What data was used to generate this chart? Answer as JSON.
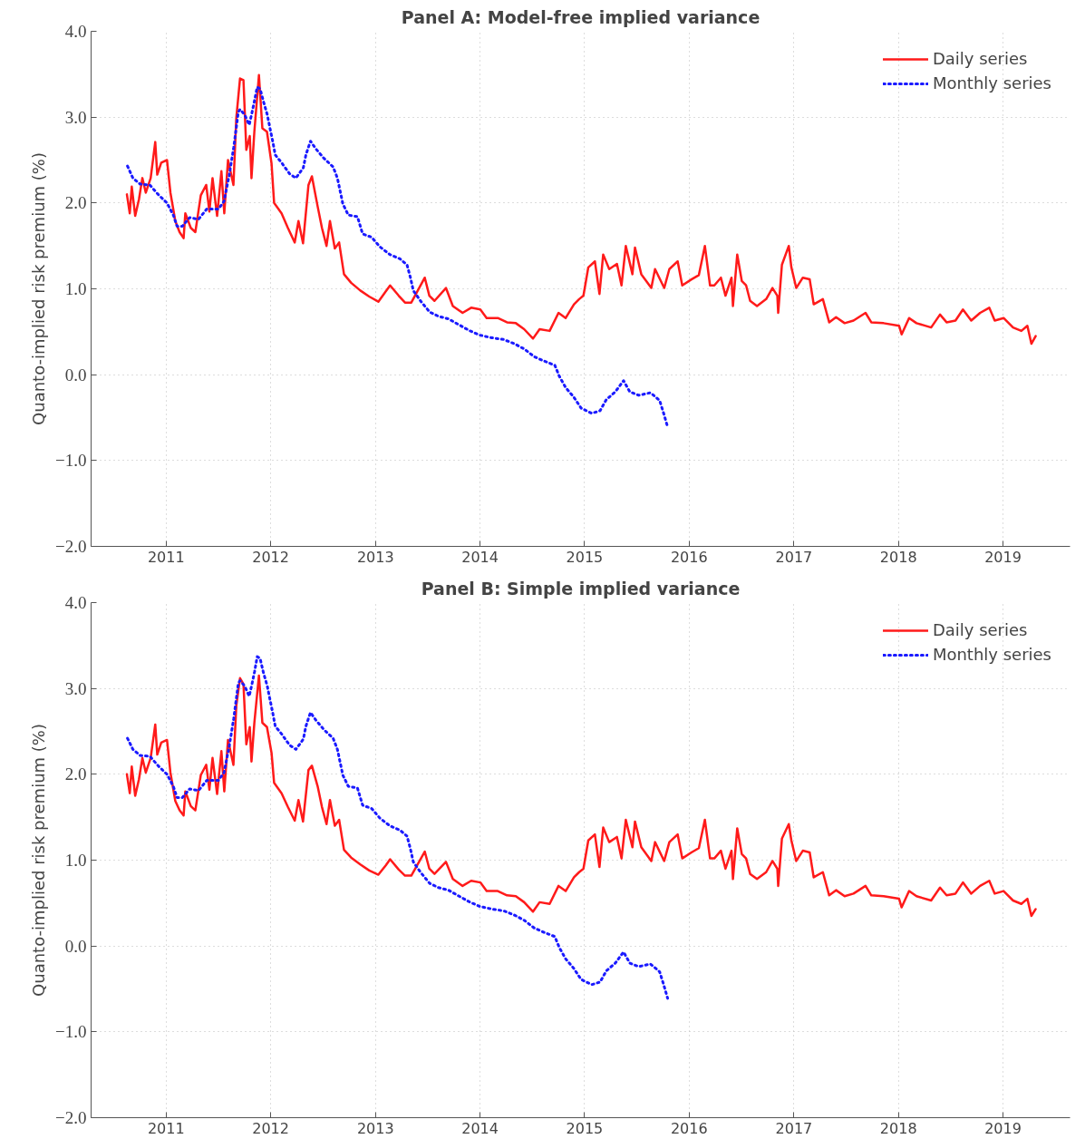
{
  "chart_data": [
    {
      "type": "line",
      "title": "Panel A: Model-free implied variance",
      "ylabel": "Quanto-implied risk premium (%)",
      "xlim": [
        "2010-04-14",
        "2019-08-23"
      ],
      "ylim": [
        -2.0,
        4.0
      ],
      "xticks": [
        {
          "value": "2011-01-01",
          "label": "2011"
        },
        {
          "value": "2012-01-01",
          "label": "2012"
        },
        {
          "value": "2013-01-01",
          "label": "2013"
        },
        {
          "value": "2014-01-01",
          "label": "2014"
        },
        {
          "value": "2015-01-01",
          "label": "2015"
        },
        {
          "value": "2016-01-01",
          "label": "2016"
        },
        {
          "value": "2017-01-01",
          "label": "2017"
        },
        {
          "value": "2018-01-01",
          "label": "2018"
        },
        {
          "value": "2019-01-01",
          "label": "2019"
        }
      ],
      "yticks": [
        {
          "value": -2.0,
          "label": "−2.0"
        },
        {
          "value": -1.0,
          "label": "−1.0"
        },
        {
          "value": 0.0,
          "label": "0.0"
        },
        {
          "value": 1.0,
          "label": "1.0"
        },
        {
          "value": 2.0,
          "label": "2.0"
        },
        {
          "value": 3.0,
          "label": "3.0"
        },
        {
          "value": 4.0,
          "label": "4.0"
        }
      ],
      "grid": true,
      "legend": "top right",
      "marker": "none",
      "series": [
        {
          "name": "Daily series",
          "color": "#ff1a1a",
          "line_style": "solid",
          "x": [
            "2010-08-17",
            "2010-08-27",
            "2010-09-03",
            "2010-09-15",
            "2010-09-28",
            "2010-10-10",
            "2010-10-22",
            "2010-11-08",
            "2010-11-24",
            "2010-12-01",
            "2010-12-15",
            "2011-01-04",
            "2011-01-16",
            "2011-02-02",
            "2011-02-17",
            "2011-03-03",
            "2011-03-09",
            "2011-03-28",
            "2011-04-13",
            "2011-05-02",
            "2011-05-21",
            "2011-06-01",
            "2011-06-12",
            "2011-06-28",
            "2011-07-13",
            "2011-07-23",
            "2011-08-05",
            "2011-08-24",
            "2011-09-03",
            "2011-09-16",
            "2011-09-28",
            "2011-10-08",
            "2011-10-20",
            "2011-10-26",
            "2011-11-05",
            "2011-11-21",
            "2011-12-03",
            "2011-12-19",
            "2012-01-04",
            "2012-01-13",
            "2012-02-08",
            "2012-03-01",
            "2012-03-25",
            "2012-04-07",
            "2012-04-23",
            "2012-05-12",
            "2012-05-24",
            "2012-06-13",
            "2012-06-28",
            "2012-07-14",
            "2012-07-26",
            "2012-08-12",
            "2012-08-27",
            "2012-09-13",
            "2012-10-08",
            "2012-11-09",
            "2012-12-10",
            "2013-01-11",
            "2013-02-06",
            "2013-02-21",
            "2013-03-23",
            "2013-04-14",
            "2013-05-06",
            "2013-06-22",
            "2013-07-08",
            "2013-07-26",
            "2013-09-04",
            "2013-09-28",
            "2013-11-01",
            "2013-12-01",
            "2014-01-02",
            "2014-01-24",
            "2014-03-04",
            "2014-04-05",
            "2014-05-06",
            "2014-06-04",
            "2014-07-05",
            "2014-07-28",
            "2014-09-01",
            "2014-10-02",
            "2014-10-27",
            "2014-11-25",
            "2014-12-13",
            "2014-12-28",
            "2015-01-14",
            "2015-02-06",
            "2015-02-22",
            "2015-03-07",
            "2015-03-28",
            "2015-04-24",
            "2015-05-10",
            "2015-05-25",
            "2015-06-17",
            "2015-06-26",
            "2015-07-18",
            "2015-08-22",
            "2015-09-04",
            "2015-10-06",
            "2015-10-24",
            "2015-11-22",
            "2015-12-08",
            "2016-01-09",
            "2016-02-04",
            "2016-02-25",
            "2016-03-14",
            "2016-03-29",
            "2016-04-21",
            "2016-05-07",
            "2016-05-28",
            "2016-06-02",
            "2016-06-17",
            "2016-07-03",
            "2016-07-18",
            "2016-08-01",
            "2016-08-25",
            "2016-09-26",
            "2016-10-18",
            "2016-11-04",
            "2016-11-07",
            "2016-11-20",
            "2016-12-14",
            "2016-12-23",
            "2017-01-09",
            "2017-02-01",
            "2017-02-25",
            "2017-03-11",
            "2017-04-12",
            "2017-05-04",
            "2017-05-28",
            "2017-06-27",
            "2017-07-28",
            "2017-09-08",
            "2017-09-28",
            "2017-11-10",
            "2018-01-03",
            "2018-01-12",
            "2018-02-07",
            "2018-03-05",
            "2018-04-25",
            "2018-05-26",
            "2018-06-18",
            "2018-07-19",
            "2018-08-14",
            "2018-09-12",
            "2018-10-13",
            "2018-11-14",
            "2018-12-03",
            "2019-01-03",
            "2019-02-05",
            "2019-03-06",
            "2019-03-27",
            "2019-04-10",
            "2019-04-25"
          ],
          "values": [
            2.1,
            1.88,
            2.19,
            1.85,
            2.04,
            2.29,
            2.12,
            2.29,
            2.71,
            2.33,
            2.47,
            2.5,
            2.12,
            1.79,
            1.66,
            1.59,
            1.88,
            1.71,
            1.66,
            2.09,
            2.21,
            1.9,
            2.29,
            1.85,
            2.37,
            1.88,
            2.5,
            2.21,
            2.99,
            3.45,
            3.43,
            2.62,
            2.78,
            2.29,
            2.83,
            3.49,
            2.87,
            2.83,
            2.46,
            2.0,
            1.88,
            1.71,
            1.54,
            1.79,
            1.53,
            2.21,
            2.31,
            1.96,
            1.71,
            1.5,
            1.79,
            1.47,
            1.54,
            1.17,
            1.07,
            0.98,
            0.91,
            0.85,
            0.97,
            1.04,
            0.92,
            0.84,
            0.84,
            1.13,
            0.92,
            0.86,
            1.01,
            0.8,
            0.72,
            0.78,
            0.76,
            0.66,
            0.66,
            0.61,
            0.6,
            0.53,
            0.42,
            0.53,
            0.51,
            0.72,
            0.66,
            0.82,
            0.88,
            0.92,
            1.25,
            1.32,
            0.94,
            1.4,
            1.23,
            1.29,
            1.04,
            1.5,
            1.17,
            1.48,
            1.17,
            1.01,
            1.23,
            1.01,
            1.23,
            1.32,
            1.04,
            1.11,
            1.16,
            1.5,
            1.04,
            1.04,
            1.13,
            0.92,
            1.13,
            0.8,
            1.4,
            1.09,
            1.04,
            0.86,
            0.8,
            0.88,
            1.01,
            0.92,
            0.72,
            1.28,
            1.5,
            1.25,
            1.01,
            1.13,
            1.11,
            0.82,
            0.88,
            0.61,
            0.67,
            0.6,
            0.63,
            0.72,
            0.61,
            0.6,
            0.57,
            0.47,
            0.66,
            0.6,
            0.55,
            0.7,
            0.61,
            0.63,
            0.76,
            0.63,
            0.72,
            0.78,
            0.63,
            0.66,
            0.55,
            0.51,
            0.57,
            0.36,
            0.45
          ]
        },
        {
          "name": "Monthly series",
          "color": "#1a1aff",
          "line_style": "dotted",
          "x": [
            "2010-08-19",
            "2010-09-07",
            "2010-10-02",
            "2010-11-05",
            "2010-12-04",
            "2011-01-04",
            "2011-01-26",
            "2011-02-08",
            "2011-02-27",
            "2011-03-24",
            "2011-04-24",
            "2011-05-23",
            "2011-07-03",
            "2011-07-22",
            "2011-08-09",
            "2011-08-25",
            "2011-09-10",
            "2011-09-16",
            "2011-10-02",
            "2011-10-18",
            "2011-10-27",
            "2011-11-06",
            "2011-11-15",
            "2011-11-25",
            "2011-12-07",
            "2011-12-20",
            "2011-12-29",
            "2012-01-08",
            "2012-01-17",
            "2012-02-08",
            "2012-03-07",
            "2012-03-29",
            "2012-04-24",
            "2012-05-03",
            "2012-05-19",
            "2012-06-07",
            "2012-07-05",
            "2012-08-06",
            "2012-08-21",
            "2012-09-09",
            "2012-09-28",
            "2012-10-30",
            "2012-11-17",
            "2012-12-19",
            "2013-01-16",
            "2013-02-20",
            "2013-03-27",
            "2013-04-21",
            "2013-05-03",
            "2013-05-13",
            "2013-06-07",
            "2013-07-09",
            "2013-08-09",
            "2013-09-13",
            "2013-10-20",
            "2013-11-27",
            "2014-01-01",
            "2014-02-11",
            "2014-03-24",
            "2014-05-01",
            "2014-06-04",
            "2014-07-09",
            "2014-08-12",
            "2014-09-19",
            "2014-10-05",
            "2014-10-27",
            "2014-11-24",
            "2014-12-20",
            "2015-01-26",
            "2015-02-24",
            "2015-03-18",
            "2015-04-18",
            "2015-05-17",
            "2015-06-08",
            "2015-07-09",
            "2015-08-19",
            "2015-09-20",
            "2015-10-05",
            "2015-10-18"
          ],
          "values": [
            2.43,
            2.29,
            2.22,
            2.21,
            2.1,
            2.0,
            1.86,
            1.73,
            1.73,
            1.83,
            1.81,
            1.93,
            1.93,
            2.02,
            2.32,
            2.65,
            3.06,
            3.09,
            3.03,
            2.91,
            3.04,
            3.2,
            3.35,
            3.33,
            3.18,
            3.03,
            2.88,
            2.72,
            2.56,
            2.47,
            2.34,
            2.29,
            2.41,
            2.56,
            2.72,
            2.63,
            2.52,
            2.42,
            2.29,
            1.99,
            1.86,
            1.84,
            1.64,
            1.6,
            1.49,
            1.4,
            1.35,
            1.28,
            1.13,
            0.98,
            0.86,
            0.73,
            0.68,
            0.65,
            0.58,
            0.51,
            0.46,
            0.43,
            0.41,
            0.36,
            0.3,
            0.21,
            0.16,
            0.11,
            -0.02,
            -0.15,
            -0.26,
            -0.39,
            -0.45,
            -0.42,
            -0.29,
            -0.2,
            -0.07,
            -0.2,
            -0.24,
            -0.21,
            -0.3,
            -0.46,
            -0.61
          ]
        }
      ]
    },
    {
      "type": "line",
      "title": "Panel B: Simple implied variance",
      "ylabel": "Quanto-implied risk premium (%)",
      "xlim": [
        "2010-04-14",
        "2019-08-23"
      ],
      "ylim": [
        -2.0,
        4.0
      ],
      "xticks": [
        {
          "value": "2011-01-01",
          "label": "2011"
        },
        {
          "value": "2012-01-01",
          "label": "2012"
        },
        {
          "value": "2013-01-01",
          "label": "2013"
        },
        {
          "value": "2014-01-01",
          "label": "2014"
        },
        {
          "value": "2015-01-01",
          "label": "2015"
        },
        {
          "value": "2016-01-01",
          "label": "2016"
        },
        {
          "value": "2017-01-01",
          "label": "2017"
        },
        {
          "value": "2018-01-01",
          "label": "2018"
        },
        {
          "value": "2019-01-01",
          "label": "2019"
        }
      ],
      "yticks": [
        {
          "value": -2.0,
          "label": "−2.0"
        },
        {
          "value": -1.0,
          "label": "−1.0"
        },
        {
          "value": 0.0,
          "label": "0.0"
        },
        {
          "value": 1.0,
          "label": "1.0"
        },
        {
          "value": 2.0,
          "label": "2.0"
        },
        {
          "value": 3.0,
          "label": "3.0"
        },
        {
          "value": 4.0,
          "label": "4.0"
        }
      ],
      "grid": true,
      "legend": "top right",
      "marker": "none",
      "series": [
        {
          "name": "Daily series",
          "color": "#ff1a1a",
          "line_style": "solid",
          "x": [
            "2010-08-17",
            "2010-08-27",
            "2010-09-03",
            "2010-09-15",
            "2010-09-28",
            "2010-10-10",
            "2010-10-22",
            "2010-11-08",
            "2010-11-24",
            "2010-12-01",
            "2010-12-15",
            "2011-01-04",
            "2011-01-16",
            "2011-02-02",
            "2011-02-17",
            "2011-03-03",
            "2011-03-09",
            "2011-03-28",
            "2011-04-13",
            "2011-05-02",
            "2011-05-21",
            "2011-06-01",
            "2011-06-12",
            "2011-06-28",
            "2011-07-13",
            "2011-07-23",
            "2011-08-05",
            "2011-08-24",
            "2011-09-03",
            "2011-09-16",
            "2011-09-28",
            "2011-10-08",
            "2011-10-20",
            "2011-10-26",
            "2011-11-05",
            "2011-11-21",
            "2011-12-03",
            "2011-12-19",
            "2012-01-04",
            "2012-01-13",
            "2012-02-08",
            "2012-03-01",
            "2012-03-25",
            "2012-04-07",
            "2012-04-23",
            "2012-05-12",
            "2012-05-24",
            "2012-06-13",
            "2012-06-28",
            "2012-07-14",
            "2012-07-26",
            "2012-08-12",
            "2012-08-27",
            "2012-09-13",
            "2012-10-08",
            "2012-11-09",
            "2012-12-10",
            "2013-01-11",
            "2013-02-06",
            "2013-02-21",
            "2013-03-23",
            "2013-04-14",
            "2013-05-06",
            "2013-06-22",
            "2013-07-08",
            "2013-07-26",
            "2013-09-04",
            "2013-09-28",
            "2013-11-01",
            "2013-12-01",
            "2014-01-02",
            "2014-01-24",
            "2014-03-04",
            "2014-04-05",
            "2014-05-06",
            "2014-06-04",
            "2014-07-05",
            "2014-07-28",
            "2014-09-01",
            "2014-10-02",
            "2014-10-27",
            "2014-11-25",
            "2014-12-13",
            "2014-12-28",
            "2015-01-14",
            "2015-02-06",
            "2015-02-22",
            "2015-03-07",
            "2015-03-28",
            "2015-04-24",
            "2015-05-10",
            "2015-05-25",
            "2015-06-17",
            "2015-06-26",
            "2015-07-18",
            "2015-08-22",
            "2015-09-04",
            "2015-10-06",
            "2015-10-24",
            "2015-11-22",
            "2015-12-08",
            "2016-01-09",
            "2016-02-04",
            "2016-02-25",
            "2016-03-14",
            "2016-03-29",
            "2016-04-21",
            "2016-05-07",
            "2016-05-28",
            "2016-06-02",
            "2016-06-17",
            "2016-07-03",
            "2016-07-18",
            "2016-08-01",
            "2016-08-25",
            "2016-09-26",
            "2016-10-18",
            "2016-11-04",
            "2016-11-07",
            "2016-11-20",
            "2016-12-14",
            "2016-12-23",
            "2017-01-09",
            "2017-02-01",
            "2017-02-25",
            "2017-03-11",
            "2017-04-12",
            "2017-05-04",
            "2017-05-28",
            "2017-06-27",
            "2017-07-28",
            "2017-09-08",
            "2017-09-28",
            "2017-11-10",
            "2018-01-03",
            "2018-01-12",
            "2018-02-07",
            "2018-03-05",
            "2018-04-25",
            "2018-05-26",
            "2018-06-18",
            "2018-07-19",
            "2018-08-14",
            "2018-09-12",
            "2018-10-13",
            "2018-11-14",
            "2018-12-03",
            "2019-01-03",
            "2019-02-05",
            "2019-03-06",
            "2019-03-27",
            "2019-04-10",
            "2019-04-25"
          ],
          "values": [
            2.0,
            1.78,
            2.09,
            1.75,
            1.94,
            2.19,
            2.02,
            2.19,
            2.58,
            2.23,
            2.37,
            2.4,
            2.02,
            1.69,
            1.58,
            1.52,
            1.8,
            1.63,
            1.58,
            1.99,
            2.11,
            1.82,
            2.19,
            1.77,
            2.27,
            1.8,
            2.4,
            2.11,
            2.8,
            3.12,
            3.05,
            2.35,
            2.55,
            2.15,
            2.6,
            3.15,
            2.6,
            2.55,
            2.25,
            1.9,
            1.78,
            1.62,
            1.46,
            1.7,
            1.45,
            2.05,
            2.1,
            1.86,
            1.62,
            1.42,
            1.7,
            1.4,
            1.47,
            1.12,
            1.03,
            0.95,
            0.88,
            0.83,
            0.94,
            1.01,
            0.89,
            0.82,
            0.82,
            1.1,
            0.9,
            0.84,
            0.98,
            0.78,
            0.7,
            0.76,
            0.74,
            0.64,
            0.64,
            0.59,
            0.58,
            0.51,
            0.4,
            0.51,
            0.49,
            0.7,
            0.64,
            0.8,
            0.86,
            0.9,
            1.23,
            1.3,
            0.92,
            1.38,
            1.21,
            1.27,
            1.02,
            1.47,
            1.15,
            1.45,
            1.15,
            0.99,
            1.21,
            0.99,
            1.21,
            1.3,
            1.02,
            1.09,
            1.14,
            1.47,
            1.02,
            1.02,
            1.11,
            0.9,
            1.11,
            0.78,
            1.37,
            1.07,
            1.02,
            0.84,
            0.78,
            0.86,
            0.99,
            0.9,
            0.7,
            1.25,
            1.42,
            1.23,
            0.99,
            1.11,
            1.09,
            0.8,
            0.86,
            0.59,
            0.65,
            0.58,
            0.61,
            0.7,
            0.59,
            0.58,
            0.55,
            0.45,
            0.64,
            0.58,
            0.53,
            0.68,
            0.59,
            0.61,
            0.74,
            0.61,
            0.7,
            0.76,
            0.61,
            0.64,
            0.53,
            0.49,
            0.55,
            0.35,
            0.43
          ]
        },
        {
          "name": "Monthly series",
          "color": "#1a1aff",
          "line_style": "dotted",
          "x": [
            "2010-08-19",
            "2010-09-07",
            "2010-10-02",
            "2010-11-05",
            "2010-12-04",
            "2011-01-04",
            "2011-01-26",
            "2011-02-08",
            "2011-02-27",
            "2011-03-24",
            "2011-04-24",
            "2011-05-23",
            "2011-07-03",
            "2011-07-22",
            "2011-08-09",
            "2011-08-25",
            "2011-09-10",
            "2011-09-16",
            "2011-10-02",
            "2011-10-18",
            "2011-10-27",
            "2011-11-06",
            "2011-11-15",
            "2011-11-25",
            "2011-12-07",
            "2011-12-20",
            "2011-12-29",
            "2012-01-08",
            "2012-01-17",
            "2012-02-08",
            "2012-03-07",
            "2012-03-29",
            "2012-04-24",
            "2012-05-03",
            "2012-05-19",
            "2012-06-07",
            "2012-07-05",
            "2012-08-06",
            "2012-08-21",
            "2012-09-09",
            "2012-09-28",
            "2012-10-30",
            "2012-11-17",
            "2012-12-19",
            "2013-01-16",
            "2013-02-20",
            "2013-03-27",
            "2013-04-21",
            "2013-05-03",
            "2013-05-13",
            "2013-06-07",
            "2013-07-09",
            "2013-08-09",
            "2013-09-13",
            "2013-10-20",
            "2013-11-27",
            "2014-01-01",
            "2014-02-11",
            "2014-03-24",
            "2014-05-01",
            "2014-06-04",
            "2014-07-09",
            "2014-08-12",
            "2014-09-19",
            "2014-10-05",
            "2014-10-27",
            "2014-11-24",
            "2014-12-20",
            "2015-01-26",
            "2015-02-24",
            "2015-03-18",
            "2015-04-18",
            "2015-05-17",
            "2015-06-08",
            "2015-07-09",
            "2015-08-19",
            "2015-09-20",
            "2015-10-05",
            "2015-10-18"
          ],
          "values": [
            2.42,
            2.29,
            2.22,
            2.21,
            2.1,
            2.0,
            1.86,
            1.73,
            1.73,
            1.83,
            1.81,
            1.93,
            1.93,
            2.02,
            2.32,
            2.65,
            3.06,
            3.09,
            3.03,
            2.91,
            3.04,
            3.2,
            3.37,
            3.35,
            3.18,
            3.03,
            2.88,
            2.72,
            2.56,
            2.47,
            2.34,
            2.29,
            2.41,
            2.56,
            2.72,
            2.63,
            2.52,
            2.42,
            2.29,
            1.99,
            1.86,
            1.84,
            1.64,
            1.6,
            1.49,
            1.4,
            1.35,
            1.28,
            1.13,
            0.98,
            0.86,
            0.73,
            0.68,
            0.65,
            0.58,
            0.51,
            0.46,
            0.43,
            0.41,
            0.36,
            0.3,
            0.21,
            0.16,
            0.11,
            -0.02,
            -0.15,
            -0.26,
            -0.39,
            -0.45,
            -0.42,
            -0.29,
            -0.2,
            -0.07,
            -0.2,
            -0.24,
            -0.21,
            -0.3,
            -0.46,
            -0.61
          ]
        }
      ]
    }
  ]
}
